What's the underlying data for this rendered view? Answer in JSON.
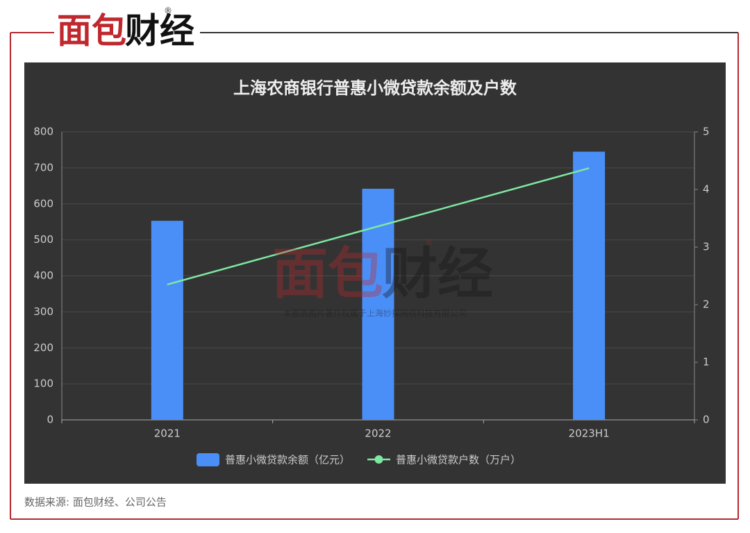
{
  "header": {
    "logo_red": "面包",
    "logo_black": "财经",
    "logo_mark": "®"
  },
  "chart_data": {
    "type": "bar",
    "title": "上海农商银行普惠小微贷款余额及户数",
    "categories": [
      "2021",
      "2022",
      "2023H1"
    ],
    "series": [
      {
        "name": "普惠小微贷款余额（亿元）",
        "type": "bar",
        "color": "#4a8ff8",
        "values": [
          553,
          642,
          745
        ]
      },
      {
        "name": "普惠小微贷款户数（万户）",
        "type": "line",
        "color": "#7ee8a2",
        "axis": "y2",
        "values": [
          2.35,
          3.36,
          4.37
        ]
      }
    ],
    "ylim": [
      0,
      800
    ],
    "yticks": [
      0,
      100,
      200,
      300,
      400,
      500,
      600,
      700,
      800
    ],
    "y2lim": [
      0,
      5
    ],
    "y2ticks": [
      0,
      1,
      2,
      3,
      4,
      5
    ],
    "grid": true
  },
  "watermark": {
    "logo_red": "面包",
    "logo_black": "财经",
    "logo_mark": "®",
    "caption": "本图表图片著作权属于上海妙探网络科技有限公司"
  },
  "source": "数据来源: 面包财经、公司公告"
}
